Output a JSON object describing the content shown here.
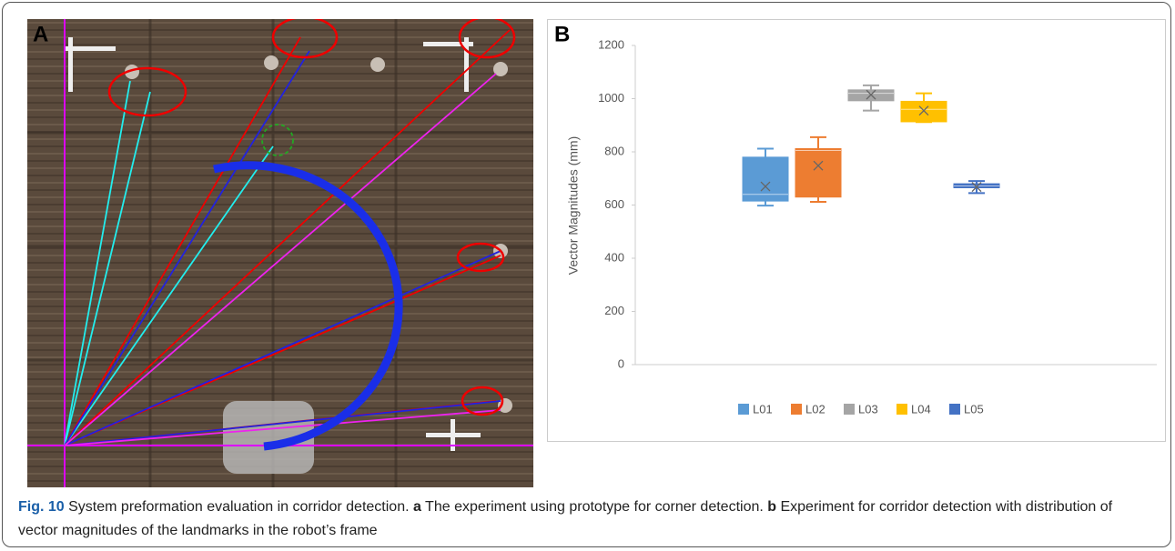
{
  "panel_a": {
    "label": "A"
  },
  "chart_data": {
    "type": "box",
    "panel_label": "B",
    "y_label": "Vector Magnitudes (mm)",
    "ylim": [
      0,
      1200
    ],
    "yticks": [
      0,
      200,
      400,
      600,
      800,
      1000,
      1200
    ],
    "series": [
      {
        "name": "L01",
        "color": "#5b9bd5",
        "min": 598,
        "q1": 615,
        "median": 640,
        "q3": 780,
        "max": 812,
        "mean": 670
      },
      {
        "name": "L02",
        "color": "#ed7d31",
        "min": 612,
        "q1": 630,
        "median": 805,
        "q3": 812,
        "max": 855,
        "mean": 748
      },
      {
        "name": "L03",
        "color": "#a5a5a5",
        "min": 955,
        "q1": 992,
        "median": 1020,
        "q3": 1033,
        "max": 1050,
        "mean": 1015
      },
      {
        "name": "L04",
        "color": "#ffc000",
        "min": 912,
        "q1": 913,
        "median": 960,
        "q3": 990,
        "max": 1020,
        "mean": 955
      },
      {
        "name": "L05",
        "color": "#4472c4",
        "min": 645,
        "q1": 665,
        "median": 672,
        "q3": 680,
        "max": 690,
        "mean": 668
      }
    ]
  },
  "caption": {
    "label": "Fig. 10",
    "text": " System preformation evaluation in corridor detection. ",
    "a": "a",
    "a_text": " The experiment using prototype for corner detection. ",
    "b": "b",
    "b_text": " Experiment for corridor detection with distribution of vector magnitudes of the landmarks in the robot’s frame"
  }
}
